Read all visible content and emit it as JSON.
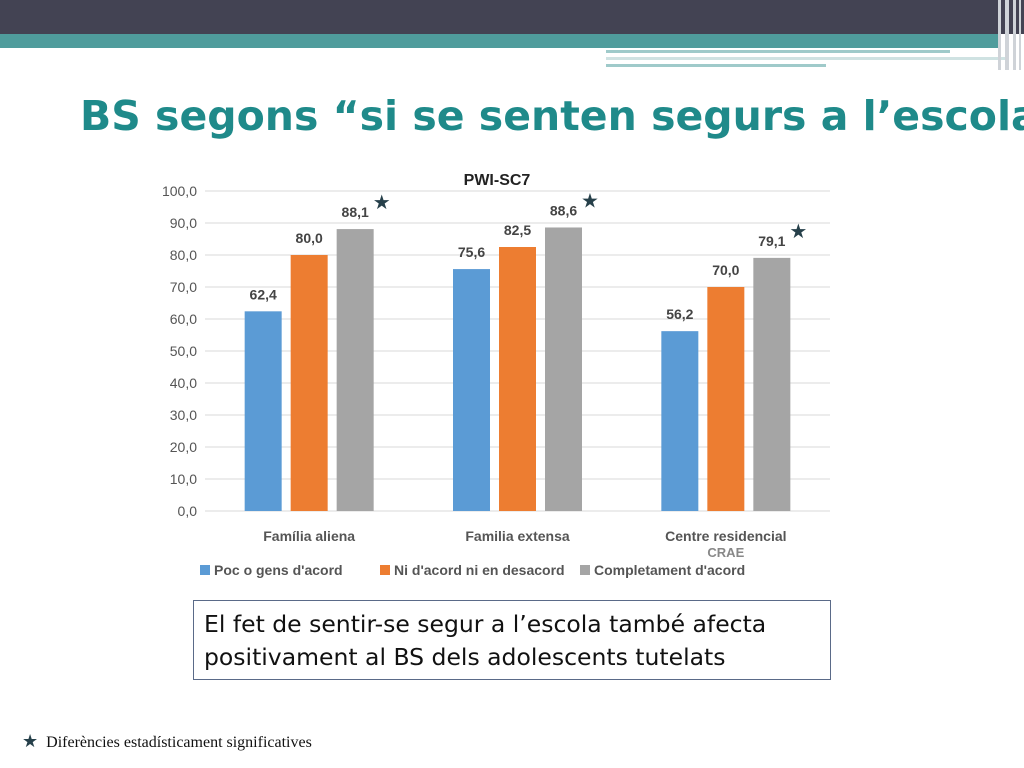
{
  "slide": {
    "title": "BS segons “si se senten segurs a l’escola”",
    "callout_line1": "El fet de sentir-se segur a l’escola també afecta",
    "callout_line2": "positivament al BS dels adolescents tutelats",
    "footnote_star": "★",
    "footnote_text": "Diferències estadísticament significatives"
  },
  "chart_data": {
    "type": "bar",
    "title": "PWI-SC7",
    "categories": [
      "Família aliena",
      "Familia extensa",
      "Centre residencial"
    ],
    "category_sublabels": [
      "",
      "",
      "CRAE"
    ],
    "series": [
      {
        "name": "Poc o gens d'acord",
        "values": [
          62.4,
          75.6,
          56.2
        ],
        "labels": [
          "62,4",
          "75,6",
          "56,2"
        ],
        "color": "#5b9bd5"
      },
      {
        "name": "Ni d'acord ni en desacord",
        "values": [
          80.0,
          82.5,
          70.0
        ],
        "labels": [
          "80,0",
          "82,5",
          "70,0"
        ],
        "color": "#ed7d31"
      },
      {
        "name": "Completament d'acord",
        "values": [
          88.1,
          88.6,
          79.1
        ],
        "labels": [
          "88,1",
          "88,6",
          "79,1"
        ],
        "color": "#a5a5a5"
      }
    ],
    "significance_markers": [
      true,
      true,
      true
    ],
    "ylim": [
      0,
      100
    ],
    "yticks": [
      "0,0",
      "10,0",
      "20,0",
      "30,0",
      "40,0",
      "50,0",
      "60,0",
      "70,0",
      "80,0",
      "90,0",
      "100,0"
    ],
    "grid": true,
    "legend_position": "bottom",
    "xlabel": "",
    "ylabel": ""
  }
}
